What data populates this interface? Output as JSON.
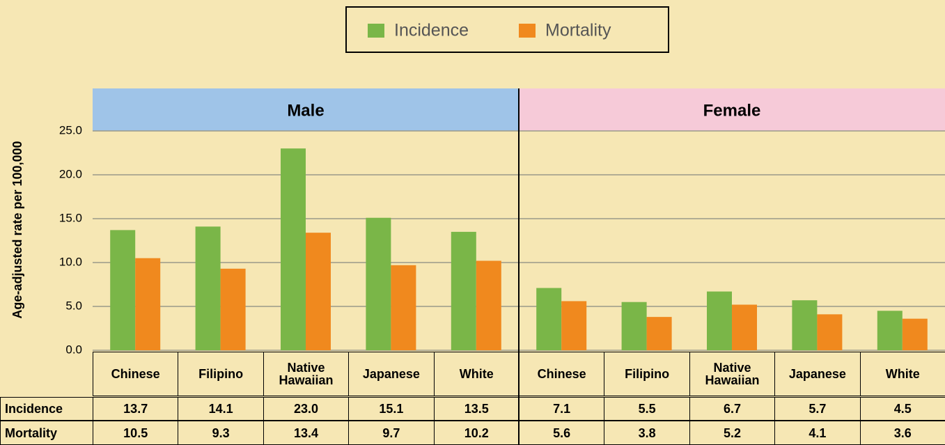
{
  "chart_data": {
    "type": "bar",
    "ylabel": "Age-adjusted rate per 100,000",
    "panels": [
      "Male",
      "Female"
    ],
    "categories": [
      "Chinese",
      "Filipino",
      "Native Hawaiian",
      "Japanese",
      "White",
      "Chinese",
      "Filipino",
      "Native Hawaiian",
      "Japanese",
      "White"
    ],
    "series": [
      {
        "name": "Incidence",
        "color": "#7ab648",
        "values": [
          13.7,
          14.1,
          23.0,
          15.1,
          13.5,
          7.1,
          5.5,
          6.7,
          5.7,
          4.5
        ],
        "value_labels": [
          "13.7",
          "14.1",
          "23.0",
          "15.1",
          "13.5",
          "7.1",
          "5.5",
          "6.7",
          "5.7",
          "4.5"
        ]
      },
      {
        "name": "Mortality",
        "color": "#f0891e",
        "values": [
          10.5,
          9.3,
          13.4,
          9.7,
          10.2,
          5.6,
          3.8,
          5.2,
          4.1,
          3.6
        ],
        "value_labels": [
          "10.5",
          "9.3",
          "13.4",
          "9.7",
          "10.2",
          "5.6",
          "3.8",
          "5.2",
          "4.1",
          "3.6"
        ]
      }
    ],
    "ylim": [
      0,
      25
    ],
    "yticks": [
      {
        "value": 0,
        "label": "0.0"
      },
      {
        "value": 5,
        "label": "5.0"
      },
      {
        "value": 10,
        "label": "10.0"
      },
      {
        "value": 15,
        "label": "15.0"
      },
      {
        "value": 20,
        "label": "20.0"
      },
      {
        "value": 25,
        "label": "25.0"
      }
    ],
    "grid": true,
    "panel_colors": [
      "#9fc4e8",
      "#f6cad8"
    ]
  }
}
